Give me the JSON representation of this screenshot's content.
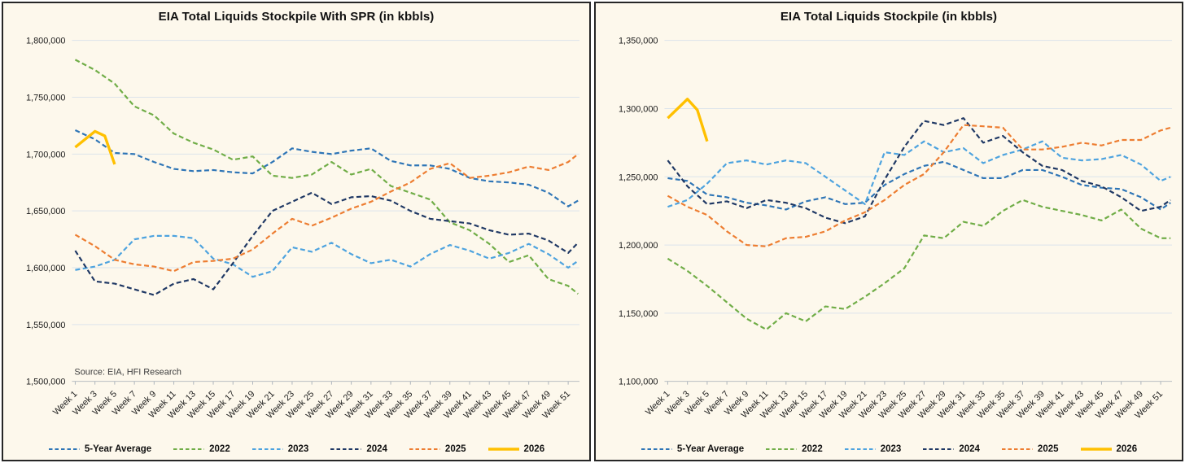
{
  "page": {
    "background": "#FFFFFF",
    "panel_background": "#FDF8EC",
    "grid_color": "#DCE4EB",
    "axis_color": "#AEB5BC"
  },
  "legend": {
    "items": [
      {
        "label": "5-Year Average",
        "color": "#2E75B6",
        "line_style": "dashed"
      },
      {
        "label": "2022",
        "color": "#70AD47",
        "line_style": "dashed"
      },
      {
        "label": "2023",
        "color": "#4DA3DF",
        "line_style": "dashed"
      },
      {
        "label": "2024",
        "color": "#1F3864",
        "line_style": "dashed"
      },
      {
        "label": "2025",
        "color": "#ED7D31",
        "line_style": "dashed"
      },
      {
        "label": "2026",
        "color": "#FFC000",
        "line_style": "solid"
      }
    ]
  },
  "charts": [
    {
      "title": "EIA Total Liquids Stockpile With SPR (in kbbls)",
      "source_note": "Source: EIA, HFI Research",
      "chart_data": {
        "type": "line",
        "ylim": [
          1500000,
          1800000
        ],
        "y_tick_step": 50000,
        "y_tick_labels": [
          "1,800,000",
          "1,750,000",
          "1,700,000",
          "1,650,000",
          "1,600,000",
          "1,550,000",
          "1,500,000"
        ],
        "x_tick_labels": [
          "Week 1",
          "Week 3",
          "Week 5",
          "Week 7",
          "Week 9",
          "Week 11",
          "Week 13",
          "Week 15",
          "Week 17",
          "Week 19",
          "Week 21",
          "Week 23",
          "Week 25",
          "Week 27",
          "Week 29",
          "Week 31",
          "Week 33",
          "Week 35",
          "Week 37",
          "Week 39",
          "Week 41",
          "Week 43",
          "Week 45",
          "Week 47",
          "Week 49",
          "Week 51"
        ],
        "legend_position": "bottom",
        "grid": "horizontal",
        "series": [
          {
            "name": "5-Year Average",
            "color": "#2E75B6",
            "style": "dashed",
            "weeks": [
              1,
              3,
              5,
              7,
              9,
              11,
              13,
              15,
              17,
              19,
              21,
              23,
              25,
              27,
              29,
              31,
              33,
              35,
              37,
              39,
              41,
              43,
              45,
              47,
              49,
              51,
              52
            ],
            "values": [
              1721000,
              1713000,
              1701000,
              1700000,
              1693000,
              1687000,
              1685000,
              1686000,
              1684000,
              1683000,
              1693000,
              1705000,
              1702000,
              1700000,
              1703000,
              1705000,
              1694000,
              1690000,
              1690000,
              1687000,
              1679000,
              1676000,
              1675000,
              1673000,
              1666000,
              1654000,
              1659000
            ]
          },
          {
            "name": "2022",
            "color": "#70AD47",
            "style": "dashed",
            "weeks": [
              1,
              3,
              5,
              7,
              9,
              11,
              13,
              15,
              17,
              19,
              21,
              23,
              25,
              27,
              29,
              31,
              33,
              35,
              37,
              39,
              41,
              43,
              45,
              47,
              49,
              51,
              52
            ],
            "values": [
              1783000,
              1774000,
              1762000,
              1742000,
              1734000,
              1718000,
              1710000,
              1704000,
              1695000,
              1698000,
              1681000,
              1679000,
              1682000,
              1693000,
              1682000,
              1687000,
              1672000,
              1666000,
              1660000,
              1640000,
              1633000,
              1621000,
              1605000,
              1611000,
              1590000,
              1584000,
              1577000
            ]
          },
          {
            "name": "2023",
            "color": "#4DA3DF",
            "style": "dashed",
            "weeks": [
              1,
              3,
              5,
              7,
              9,
              11,
              13,
              15,
              17,
              19,
              21,
              23,
              25,
              27,
              29,
              31,
              33,
              35,
              37,
              39,
              41,
              43,
              45,
              47,
              49,
              51,
              52
            ],
            "values": [
              1598000,
              1601000,
              1607000,
              1625000,
              1628000,
              1628000,
              1626000,
              1608000,
              1603000,
              1592000,
              1597000,
              1618000,
              1614000,
              1622000,
              1612000,
              1604000,
              1607000,
              1601000,
              1612000,
              1620000,
              1615000,
              1608000,
              1613000,
              1621000,
              1612000,
              1600000,
              1606000
            ]
          },
          {
            "name": "2024",
            "color": "#1F3864",
            "style": "dashed",
            "weeks": [
              1,
              3,
              5,
              7,
              9,
              11,
              13,
              15,
              17,
              19,
              21,
              23,
              25,
              27,
              29,
              31,
              33,
              35,
              37,
              39,
              41,
              43,
              45,
              47,
              49,
              51,
              52
            ],
            "values": [
              1615000,
              1588000,
              1586000,
              1581000,
              1576000,
              1586000,
              1590000,
              1581000,
              1604000,
              1628000,
              1650000,
              1658000,
              1666000,
              1656000,
              1662000,
              1663000,
              1659000,
              1650000,
              1643000,
              1641000,
              1639000,
              1633000,
              1629000,
              1630000,
              1624000,
              1613000,
              1622000
            ]
          },
          {
            "name": "2025",
            "color": "#ED7D31",
            "style": "dashed",
            "weeks": [
              1,
              3,
              5,
              7,
              9,
              11,
              13,
              15,
              17,
              19,
              21,
              23,
              25,
              27,
              29,
              31,
              33,
              35,
              37,
              39,
              41,
              43,
              45,
              47,
              49,
              51,
              52
            ],
            "values": [
              1629000,
              1619000,
              1607000,
              1603000,
              1601000,
              1597000,
              1605000,
              1606000,
              1608000,
              1616000,
              1630000,
              1643000,
              1637000,
              1644000,
              1652000,
              1658000,
              1667000,
              1675000,
              1687000,
              1692000,
              1679000,
              1681000,
              1684000,
              1689000,
              1686000,
              1693000,
              1700000
            ]
          },
          {
            "name": "2026",
            "color": "#FFC000",
            "style": "solid",
            "weeks": [
              1,
              2,
              3,
              4,
              5
            ],
            "values": [
              1706000,
              1713000,
              1720000,
              1716000,
              1691000
            ]
          }
        ]
      }
    },
    {
      "title": "EIA Total Liquids Stockpile (in kbbls)",
      "source_note": "",
      "chart_data": {
        "type": "line",
        "ylim": [
          1100000,
          1350000
        ],
        "y_tick_step": 50000,
        "y_tick_labels": [
          "1,350,000",
          "1,300,000",
          "1,250,000",
          "1,200,000",
          "1,150,000",
          "1,100,000"
        ],
        "x_tick_labels": [
          "Week 1",
          "Week 3",
          "Week 5",
          "Week 7",
          "Week 9",
          "Week 11",
          "Week 13",
          "Week 15",
          "Week 17",
          "Week 19",
          "Week 21",
          "Week 23",
          "Week 25",
          "Week 27",
          "Week 29",
          "Week 31",
          "Week 33",
          "Week 35",
          "Week 37",
          "Week 39",
          "Week 41",
          "Week 43",
          "Week 45",
          "Week 47",
          "Week 49",
          "Week 51"
        ],
        "legend_position": "bottom",
        "grid": "horizontal",
        "series": [
          {
            "name": "5-Year Average",
            "color": "#2E75B6",
            "style": "dashed",
            "weeks": [
              1,
              3,
              5,
              7,
              9,
              11,
              13,
              15,
              17,
              19,
              21,
              23,
              25,
              27,
              29,
              31,
              33,
              35,
              37,
              39,
              41,
              43,
              45,
              47,
              49,
              51,
              52
            ],
            "values": [
              1249000,
              1247000,
              1237000,
              1235000,
              1231000,
              1229000,
              1226000,
              1232000,
              1235000,
              1230000,
              1231000,
              1244000,
              1252000,
              1258000,
              1261000,
              1255000,
              1249000,
              1249000,
              1255000,
              1255000,
              1250000,
              1244000,
              1242000,
              1241000,
              1235000,
              1226000,
              1231000
            ]
          },
          {
            "name": "2022",
            "color": "#70AD47",
            "style": "dashed",
            "weeks": [
              1,
              3,
              5,
              7,
              9,
              11,
              13,
              15,
              17,
              19,
              21,
              23,
              25,
              27,
              29,
              31,
              33,
              35,
              37,
              39,
              41,
              43,
              45,
              47,
              49,
              51,
              52
            ],
            "values": [
              1190000,
              1181000,
              1170000,
              1158000,
              1146000,
              1138000,
              1150000,
              1144000,
              1155000,
              1153000,
              1162000,
              1172000,
              1183000,
              1207000,
              1205000,
              1217000,
              1214000,
              1225000,
              1233000,
              1228000,
              1225000,
              1222000,
              1218000,
              1226000,
              1212000,
              1205000,
              1205000
            ]
          },
          {
            "name": "2023",
            "color": "#4DA3DF",
            "style": "dashed",
            "weeks": [
              1,
              3,
              5,
              7,
              9,
              11,
              13,
              15,
              17,
              19,
              21,
              23,
              25,
              27,
              29,
              31,
              33,
              35,
              37,
              39,
              41,
              43,
              45,
              47,
              49,
              51,
              52
            ],
            "values": [
              1228000,
              1233000,
              1245000,
              1260000,
              1262000,
              1259000,
              1262000,
              1260000,
              1250000,
              1240000,
              1230000,
              1268000,
              1266000,
              1276000,
              1268000,
              1271000,
              1260000,
              1266000,
              1270000,
              1276000,
              1264000,
              1262000,
              1263000,
              1266000,
              1259000,
              1247000,
              1250000
            ]
          },
          {
            "name": "2024",
            "color": "#1F3864",
            "style": "dashed",
            "weeks": [
              1,
              3,
              5,
              7,
              9,
              11,
              13,
              15,
              17,
              19,
              21,
              23,
              25,
              27,
              29,
              31,
              33,
              35,
              37,
              39,
              41,
              43,
              45,
              47,
              49,
              51,
              52
            ],
            "values": [
              1262000,
              1243000,
              1230000,
              1232000,
              1227000,
              1233000,
              1231000,
              1227000,
              1220000,
              1216000,
              1221000,
              1248000,
              1272000,
              1291000,
              1288000,
              1293000,
              1275000,
              1280000,
              1268000,
              1258000,
              1255000,
              1247000,
              1243000,
              1235000,
              1225000,
              1228000,
              1233000
            ]
          },
          {
            "name": "2025",
            "color": "#ED7D31",
            "style": "dashed",
            "weeks": [
              1,
              3,
              5,
              7,
              9,
              11,
              13,
              15,
              17,
              19,
              21,
              23,
              25,
              27,
              29,
              31,
              33,
              35,
              37,
              39,
              41,
              43,
              45,
              47,
              49,
              51,
              52
            ],
            "values": [
              1236000,
              1228000,
              1222000,
              1210000,
              1200000,
              1199000,
              1205000,
              1206000,
              1210000,
              1218000,
              1224000,
              1233000,
              1244000,
              1252000,
              1268000,
              1288000,
              1287000,
              1286000,
              1270000,
              1270000,
              1272000,
              1275000,
              1273000,
              1277000,
              1277000,
              1284000,
              1286000
            ]
          },
          {
            "name": "2026",
            "color": "#FFC000",
            "style": "solid",
            "weeks": [
              1,
              2,
              3,
              4,
              5
            ],
            "values": [
              1293000,
              1300000,
              1307000,
              1299000,
              1276000
            ]
          }
        ]
      }
    }
  ]
}
